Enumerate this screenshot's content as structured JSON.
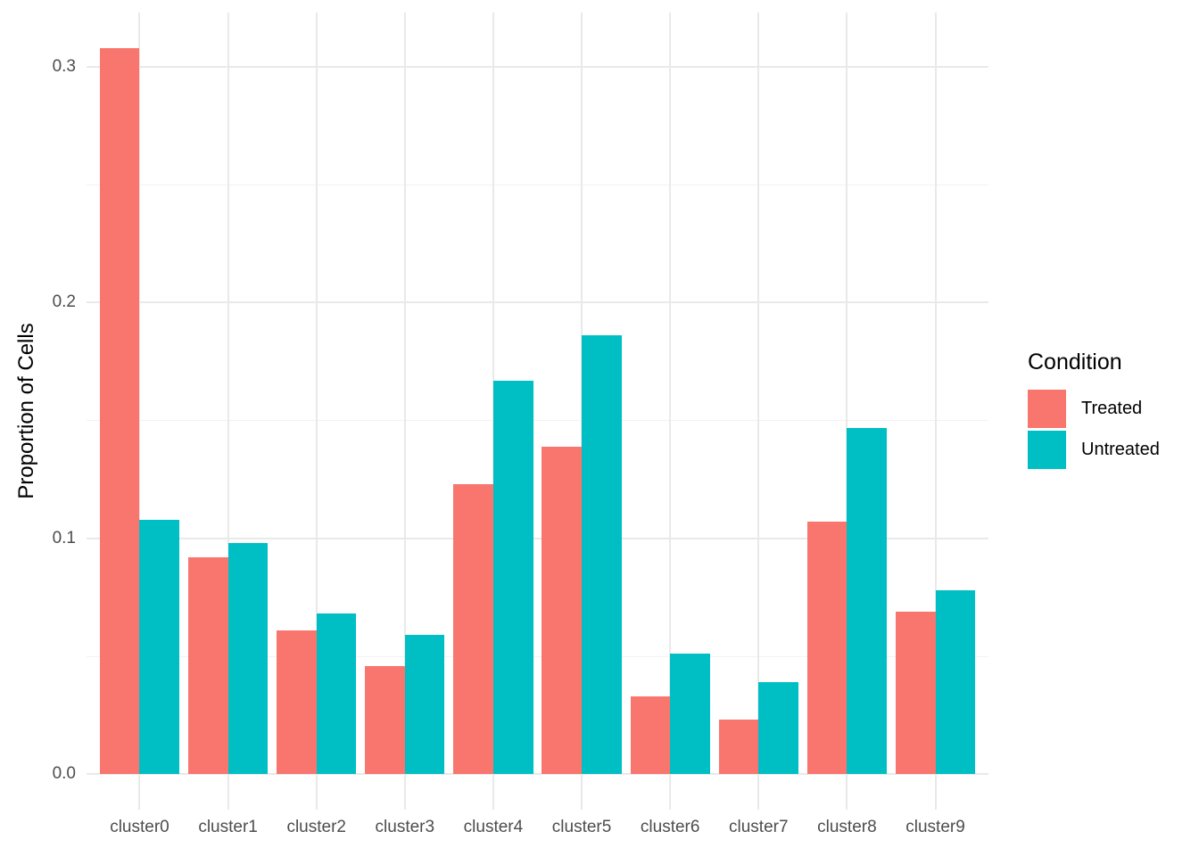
{
  "chart_data": {
    "type": "bar",
    "bar_grouping": "dodge",
    "title": "",
    "xlabel": "",
    "ylabel": "Proportion of Cells",
    "categories": [
      "cluster0",
      "cluster1",
      "cluster2",
      "cluster3",
      "cluster4",
      "cluster5",
      "cluster6",
      "cluster7",
      "cluster8",
      "cluster9"
    ],
    "series": [
      {
        "name": "Treated",
        "color": "#F8766D",
        "values": [
          0.308,
          0.092,
          0.061,
          0.046,
          0.123,
          0.139,
          0.033,
          0.023,
          0.107,
          0.069
        ]
      },
      {
        "name": "Untreated",
        "color": "#00BFC4",
        "values": [
          0.108,
          0.098,
          0.068,
          0.059,
          0.167,
          0.186,
          0.051,
          0.039,
          0.147,
          0.078
        ]
      }
    ],
    "legend": {
      "title": "Condition",
      "position": "right"
    },
    "y_ticks": [
      {
        "value": 0.0,
        "label": "0.0"
      },
      {
        "value": 0.1,
        "label": "0.1"
      },
      {
        "value": 0.2,
        "label": "0.2"
      },
      {
        "value": 0.3,
        "label": "0.3"
      }
    ],
    "y_ticks_minor": [
      0.05,
      0.15,
      0.25
    ],
    "ylim": [
      -0.015,
      0.323
    ],
    "grid": true,
    "grid_major_color": "#E9E9E9",
    "grid_minor_color": "#F2F2F2",
    "background_color": "#FFFFFF",
    "tick_text_color": "#4D4D4D"
  }
}
